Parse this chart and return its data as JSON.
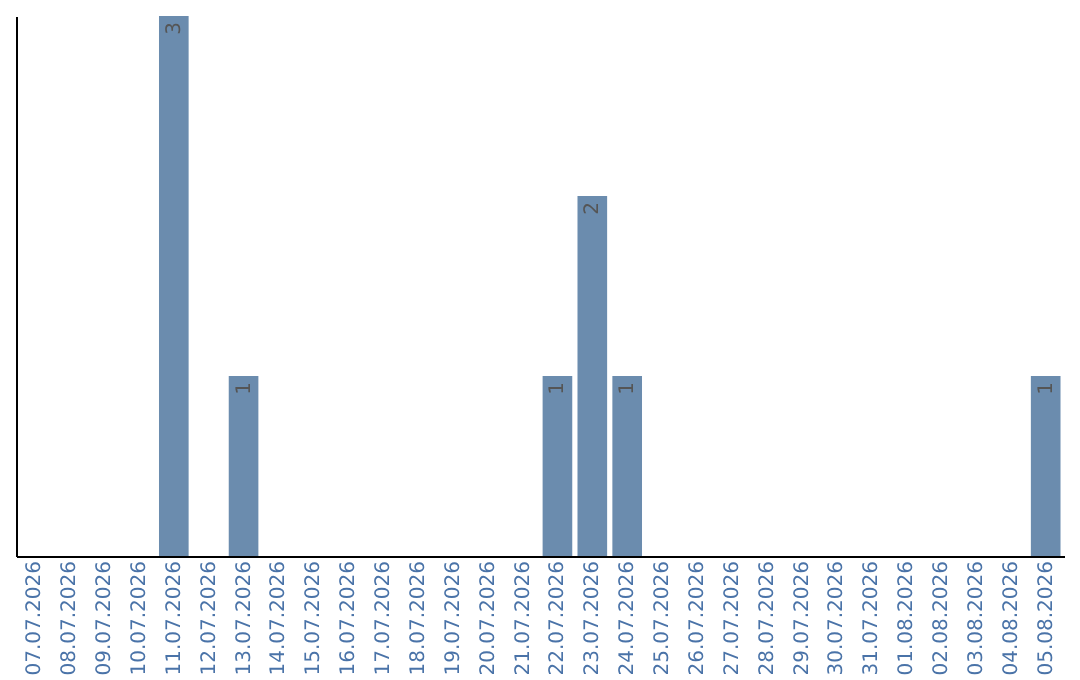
{
  "chart_data": {
    "type": "bar",
    "categories": [
      "07.07.2026",
      "08.07.2026",
      "09.07.2026",
      "10.07.2026",
      "11.07.2026",
      "12.07.2026",
      "13.07.2026",
      "14.07.2026",
      "15.07.2026",
      "16.07.2026",
      "17.07.2026",
      "18.07.2026",
      "19.07.2026",
      "20.07.2026",
      "21.07.2026",
      "22.07.2026",
      "23.07.2026",
      "24.07.2026",
      "25.07.2026",
      "26.07.2026",
      "27.07.2026",
      "28.07.2026",
      "29.07.2026",
      "30.07.2026",
      "31.07.2026",
      "01.08.2026",
      "02.08.2026",
      "03.08.2026",
      "04.08.2026",
      "05.08.2026"
    ],
    "values": [
      0,
      0,
      0,
      0,
      3,
      0,
      1,
      0,
      0,
      0,
      0,
      0,
      0,
      0,
      0,
      1,
      2,
      1,
      0,
      0,
      0,
      0,
      0,
      0,
      0,
      0,
      0,
      0,
      0,
      1
    ],
    "value_labels": [
      null,
      null,
      null,
      null,
      "3",
      null,
      "1",
      null,
      null,
      null,
      null,
      null,
      null,
      null,
      null,
      "1",
      "2",
      "1",
      null,
      null,
      null,
      null,
      null,
      null,
      null,
      null,
      null,
      null,
      null,
      "1"
    ],
    "color": "#6b8cae",
    "tick_labels": "x",
    "grid": false
  }
}
